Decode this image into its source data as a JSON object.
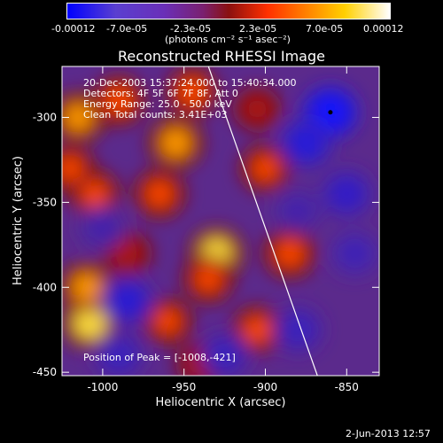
{
  "colorbar": {
    "tick_labels": [
      "-0.00012",
      "-7.0e-05",
      "-2.3e-05",
      "2.3e-05",
      "7.0e-05",
      "0.00012"
    ],
    "unit_label": "(photons cm⁻² s⁻¹ asec⁻²)",
    "colors": [
      "#0000ff",
      "#6a2fb8",
      "#8a1a1a",
      "#ff5000",
      "#ffd000",
      "#ffffff"
    ]
  },
  "chart": {
    "title": "Reconstructed RHESSI Image",
    "annotations": [
      "20-Dec-2003 15:37:24.000 to 15:40:34.000",
      "Detectors: 4F 5F 6F 7F 8F, Att 0",
      "Energy Range: 25.0 - 50.0 keV",
      "Clean     Total counts: 3.41E+03"
    ],
    "peak_text": "Position of Peak = [-1008,-421]",
    "footer": "2-Jun-2013 12:57"
  },
  "chart_data": {
    "type": "heatmap",
    "title": "Reconstructed RHESSI Image",
    "xlabel": "Heliocentric X (arcsec)",
    "ylabel": "Heliocentric Y (arcsec)",
    "xlim": [
      -1025,
      -830
    ],
    "ylim": [
      -452,
      -270
    ],
    "xticks": [
      -1000,
      -950,
      -900,
      -850
    ],
    "yticks": [
      -450,
      -400,
      -350,
      -300
    ],
    "xtick_labels": [
      "-1000",
      "-950",
      "-900",
      "-850"
    ],
    "ytick_labels": [
      "-450",
      "-400",
      "-350",
      "-300"
    ],
    "limb_line": [
      [
        -935,
        -270
      ],
      [
        -868,
        -452
      ]
    ],
    "peak": [
      -1008,
      -421
    ],
    "min_marker": [
      -860,
      -297
    ],
    "colorbar_range": [
      -0.00012,
      0.00012
    ],
    "blobs": [
      {
        "x": -1008,
        "y": -421,
        "v": 1.0
      },
      {
        "x": -1010,
        "y": -400,
        "v": 0.8
      },
      {
        "x": -1015,
        "y": -300,
        "v": 0.75
      },
      {
        "x": -990,
        "y": -290,
        "v": 0.7
      },
      {
        "x": -945,
        "y": -285,
        "v": 0.7
      },
      {
        "x": -955,
        "y": -315,
        "v": 0.85
      },
      {
        "x": -965,
        "y": -345,
        "v": 0.65
      },
      {
        "x": -1005,
        "y": -345,
        "v": 0.55
      },
      {
        "x": -930,
        "y": -380,
        "v": 0.9
      },
      {
        "x": -935,
        "y": -395,
        "v": 0.6
      },
      {
        "x": -885,
        "y": -380,
        "v": 0.7
      },
      {
        "x": -905,
        "y": -425,
        "v": 0.6
      },
      {
        "x": -960,
        "y": -420,
        "v": 0.5
      },
      {
        "x": -985,
        "y": -380,
        "v": 0.45
      },
      {
        "x": -900,
        "y": -330,
        "v": 0.55
      },
      {
        "x": -1020,
        "y": -330,
        "v": 0.5
      },
      {
        "x": -905,
        "y": -295,
        "v": 0.35
      },
      {
        "x": -940,
        "y": -445,
        "v": 0.4
      },
      {
        "x": -860,
        "y": -297,
        "v": -1.0
      },
      {
        "x": -875,
        "y": -315,
        "v": -0.7
      },
      {
        "x": -850,
        "y": -345,
        "v": -0.55
      },
      {
        "x": -985,
        "y": -408,
        "v": -0.65
      },
      {
        "x": -990,
        "y": -440,
        "v": -0.45
      },
      {
        "x": -925,
        "y": -440,
        "v": -0.45
      },
      {
        "x": -880,
        "y": -425,
        "v": -0.45
      },
      {
        "x": -845,
        "y": -380,
        "v": -0.4
      },
      {
        "x": -1000,
        "y": -365,
        "v": -0.3
      },
      {
        "x": -880,
        "y": -355,
        "v": -0.3
      }
    ]
  }
}
